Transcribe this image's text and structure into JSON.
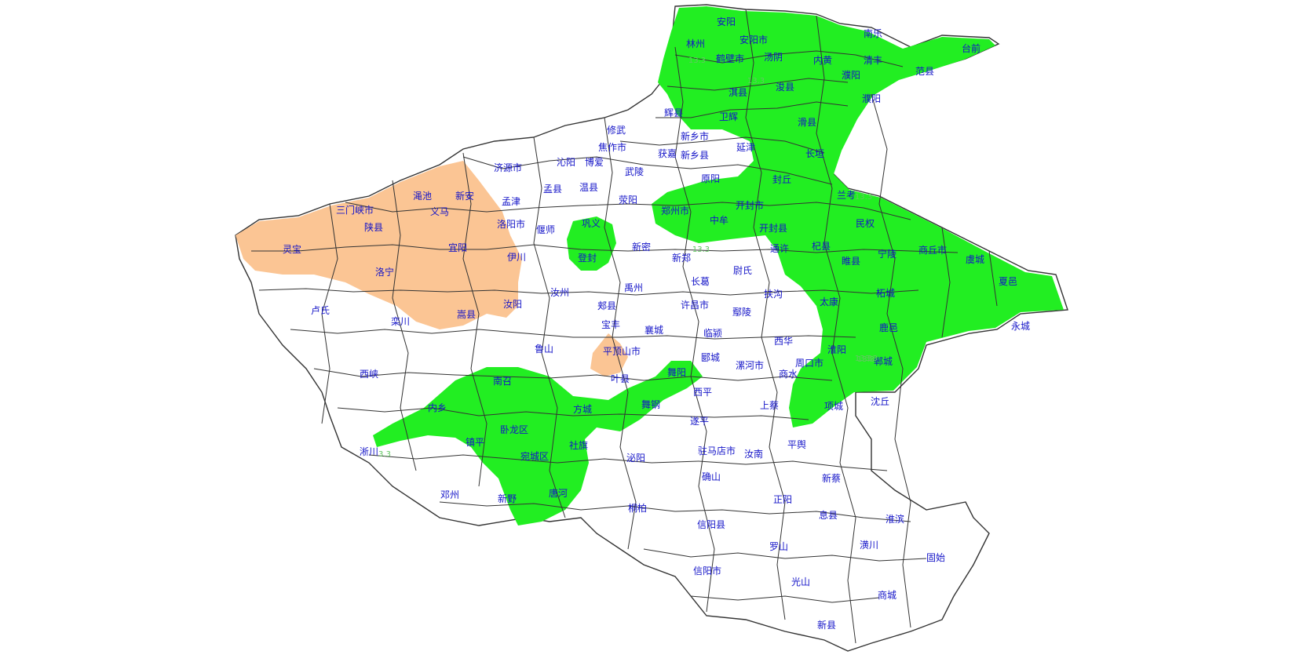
{
  "map": {
    "colors": {
      "background": "#ffffff",
      "province_fill": "#ffffff",
      "boundary": "#333333",
      "green_zone": "#22ee22",
      "orange_zone": "#fbc594",
      "label": "#1414c8",
      "value_label": "#63c763"
    },
    "counties": [
      "安阳",
      "安阳市",
      "林州",
      "鹤壁市",
      "汤阴",
      "内黄",
      "南乐",
      "清丰",
      "濮阳",
      "范县",
      "台前",
      "淇县",
      "浚县",
      "濮阳",
      "辉县",
      "卫辉",
      "滑县",
      "新乡市",
      "获嘉",
      "新乡县",
      "延津",
      "长垣",
      "修武",
      "焦作市",
      "济源市",
      "沁阳",
      "博爱",
      "武陵",
      "原阳",
      "封丘",
      "孟县",
      "温县",
      "孟津",
      "兰考",
      "三门峡市",
      "渑池",
      "新安",
      "义马",
      "陕县",
      "灵宝",
      "洛阳市",
      "偃师",
      "巩义",
      "荥阳",
      "郑州市",
      "中牟",
      "开封市",
      "开封县",
      "民权",
      "商丘市",
      "虞城",
      "宜阳",
      "伊川",
      "登封",
      "新密",
      "新郑",
      "通许",
      "杞县",
      "睢县",
      "宁陵",
      "夏邑",
      "洛宁",
      "尉氏",
      "长葛",
      "扶沟",
      "太康",
      "柘城",
      "卢氏",
      "栾川",
      "嵩县",
      "汝阳",
      "汝州",
      "禹州",
      "郏县",
      "许昌市",
      "鄢陵",
      "鹿邑",
      "永城",
      "宝丰",
      "襄城",
      "临颍",
      "西华",
      "淮阳",
      "郸城",
      "鲁山",
      "平顶山市",
      "郾城",
      "漯河市",
      "周口市",
      "西峡",
      "叶县",
      "舞阳",
      "商水",
      "南召",
      "西平",
      "上蔡",
      "项城",
      "沈丘",
      "内乡",
      "方城",
      "舞钢",
      "遂平",
      "淅川",
      "镇平",
      "卧龙区",
      "社旗",
      "宛城区",
      "驻马店市",
      "汝南",
      "平舆",
      "泌阳",
      "确山",
      "新蔡",
      "邓州",
      "新野",
      "唐河",
      "桐柏",
      "正阳",
      "息县",
      "淮滨",
      "信阳县",
      "罗山",
      "潢川",
      "固始",
      "信阳市",
      "光山",
      "商城",
      "新县"
    ],
    "value_labels": [
      "13.3",
      "13.3",
      "13.3",
      "13.3",
      "13.3",
      "3.3",
      "3.3",
      "13.3"
    ]
  }
}
